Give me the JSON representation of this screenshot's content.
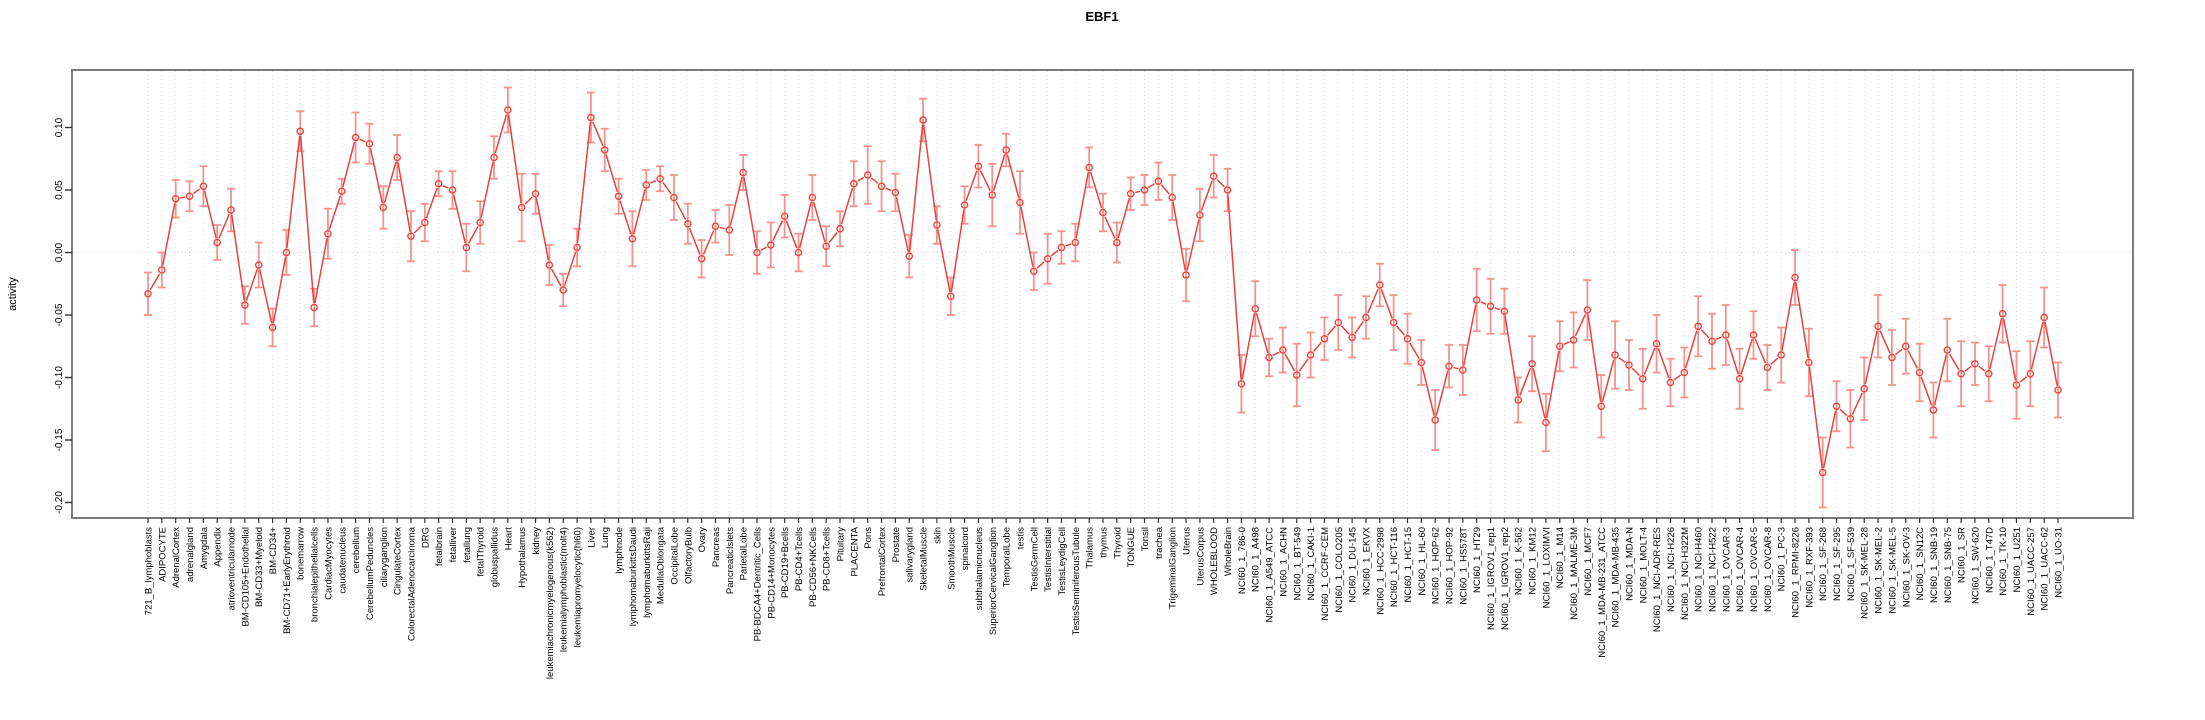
{
  "chart_title": "EBF1",
  "chart_data": {
    "type": "line",
    "title": "EBF1",
    "ylabel": "activity",
    "xlabel": "",
    "ylim": [
      -0.21,
      0.145
    ],
    "yticks": [
      "0.10",
      "0.05",
      "0.00",
      "-0.05",
      "-0.10",
      "-0.15",
      "-0.20"
    ],
    "ytick_values": [
      0.1,
      0.05,
      0.0,
      -0.05,
      -0.1,
      -0.15,
      -0.2
    ],
    "grid": "vertical dotted gridline per category, dotted horizontal line at zero",
    "legend_position": "none",
    "marker": "open-circle",
    "point_color": "#e8413e",
    "errorbar_color": "#f4928f",
    "grid_color": "#dedede",
    "box_color": "#7c7c7c",
    "categories": [
      "721_B_lymphoblasts",
      "ADIPOCYTE",
      "AdrenalCortex",
      "adrenalgland",
      "Amygdala",
      "Appendix",
      "atrioventricularnode",
      "BM-CD105+Endothelial",
      "BM-CD33+Myeloid",
      "BM-CD34+",
      "BM-CD71+EarlyErythroid",
      "bonemarrow",
      "bronchialepithelialcells",
      "CardiacMyocytes",
      "caudatenucleus",
      "cerebellum",
      "CerebellumPeduncles",
      "ciliaryganglion",
      "CingulateCortex",
      "ColorectalAdenocarcinoma",
      "DRG",
      "fetalbrain",
      "fetalliver",
      "fetallung",
      "fetalThyroid",
      "globuspallidus",
      "Heart",
      "Hypothalamus",
      "kidney",
      "leukemiachronicmyelogenous(k562)",
      "leukemialymphoblastic(molt4)",
      "leukemiapromyelocytic(hl60)",
      "Liver",
      "Lung",
      "lymphnode",
      "lymphomaburkittsDaudi",
      "lymphomaburkittsRaji",
      "MedullaOblongata",
      "OccipitalLobe",
      "OlfactoryBulb",
      "Ovary",
      "Pancreas",
      "PancreaticIslets",
      "ParietalLobe",
      "PB-BDCA4+Dentritic_Cells",
      "PB-CD14+Monocytes",
      "PB-CD19+Bcells",
      "PB-CD4+Tcells",
      "PB-CD56+NKCells",
      "PB-CD8+Tcells",
      "Pituitary",
      "PLACENTA",
      "Pons",
      "PrefrontalCortex",
      "Prostate",
      "salivarygland",
      "SkeletalMuscle",
      "skin",
      "SmoothMuscle",
      "spinalcord",
      "subthalamicnucleus",
      "SuperiorCervicalGanglion",
      "TemporalLobe",
      "testis",
      "TestisGermCell",
      "TestisInterstitial",
      "TestisLeydigCell",
      "TestisSeminiferousTubule",
      "Thalamus",
      "thymus",
      "Thyroid",
      "TONGUE",
      "Tonsil",
      "trachea",
      "TrigeminalGanglion",
      "Uterus",
      "UterusCorpus",
      "WHOLEBLOOD",
      "WholeBrain",
      "NCI60_1_786-0",
      "NCI60_1_A498",
      "NCI60_1_A549_ATCC",
      "NCI60_1_ACHN",
      "NCI60_1_BT-549",
      "NCI60_1_CAKI-1",
      "NCI60_1_CCRF-CEM",
      "NCI60_1_COLO205",
      "NCI60_1_DU-145",
      "NCI60_1_EKVX",
      "NCI60_1_HCC-2998",
      "NCI60_1_HCT-116",
      "NCI60_1_HCT-15",
      "NCI60_1_HL-60",
      "NCI60_1_HOP-62",
      "NCI60_1_HOP-92",
      "NCI60_1_HS578T",
      "NCI60_1_HT29",
      "NCI60_1_IGROV1_rep1",
      "NCI60_1_IGROV1_rep2",
      "NCI60_1_K-562",
      "NCI60_1_KM12",
      "NCI60_1_LOXIMVI",
      "NCI60_1_M14",
      "NCI60_1_MALME-3M",
      "NCI60_1_MCF7",
      "NCI60_1_MDA-MB-231_ATCC",
      "NCI60_1_MDA-MB-435",
      "NCI60_1_MDA-N",
      "NCI60_1_MOLT-4",
      "NCI60_1_NCI-ADR-RES",
      "NCI60_1_NCI-H226",
      "NCI60_1_NCI-H322M",
      "NCI60_1_NCI-H460",
      "NCI60_1_NCI-H522",
      "NCI60_1_OVCAR-3",
      "NCI60_1_OVCAR-4",
      "NCI60_1_OVCAR-5",
      "NCI60_1_OVCAR-8",
      "NCI60_1_PC-3",
      "NCI60_1_RPMI-8226",
      "NCI60_1_RXF-393",
      "NCI60_1_SF-268",
      "NCI60_1_SF-295",
      "NCI60_1_SF-539",
      "NCI60_1_SK-MEL-28",
      "NCI60_1_SK-MEL-2",
      "NCI60_1_SK-MEL-5",
      "NCI60_1_SK-OV-3",
      "NCI60_1_SN12C",
      "NCI60_1_SNB-19",
      "NCI60_1_SNB-75",
      "NCI60_1_SR",
      "NCI60_1_SW-620",
      "NCI60_1_T47D",
      "NCI60_1_TK-10",
      "NCI60_1_U251",
      "NCI60_1_UACC-257",
      "NCI60_1_UACC-62",
      "NCI60_1_UO-31"
    ],
    "values": [
      -0.033,
      -0.014,
      0.043,
      0.045,
      0.053,
      0.008,
      0.034,
      -0.042,
      -0.01,
      -0.06,
      0.0,
      0.097,
      -0.044,
      0.015,
      0.049,
      0.092,
      0.087,
      0.036,
      0.076,
      0.013,
      0.024,
      0.055,
      0.05,
      0.004,
      0.024,
      0.076,
      0.114,
      0.036,
      0.047,
      -0.01,
      -0.03,
      0.004,
      0.108,
      0.082,
      0.045,
      0.011,
      0.054,
      0.059,
      0.044,
      0.023,
      -0.005,
      0.021,
      0.018,
      0.064,
      0.0,
      0.006,
      0.029,
      0.0,
      0.044,
      0.005,
      0.019,
      0.055,
      0.062,
      0.053,
      0.048,
      -0.003,
      0.106,
      0.022,
      -0.035,
      0.038,
      0.069,
      0.046,
      0.082,
      0.04,
      -0.015,
      -0.005,
      0.004,
      0.008,
      0.068,
      0.032,
      0.008,
      0.047,
      0.05,
      0.057,
      0.044,
      -0.018,
      0.03,
      0.061,
      0.05,
      -0.105,
      -0.045,
      -0.084,
      -0.078,
      -0.098,
      -0.082,
      -0.069,
      -0.056,
      -0.068,
      -0.052,
      -0.026,
      -0.056,
      -0.069,
      -0.088,
      -0.134,
      -0.091,
      -0.094,
      -0.038,
      -0.043,
      -0.047,
      -0.118,
      -0.089,
      -0.136,
      -0.075,
      -0.07,
      -0.046,
      -0.123,
      -0.082,
      -0.09,
      -0.101,
      -0.073,
      -0.104,
      -0.096,
      -0.059,
      -0.071,
      -0.066,
      -0.101,
      -0.066,
      -0.092,
      -0.082,
      -0.02,
      -0.088,
      -0.176,
      -0.123,
      -0.133,
      -0.109,
      -0.059,
      -0.084,
      -0.075,
      -0.096,
      -0.126,
      -0.078,
      -0.097,
      -0.089,
      -0.097,
      -0.049,
      -0.106,
      -0.097,
      -0.052,
      -0.11
    ],
    "errors": [
      0.017,
      0.014,
      0.015,
      0.012,
      0.016,
      0.014,
      0.017,
      0.015,
      0.018,
      0.015,
      0.018,
      0.016,
      0.015,
      0.02,
      0.01,
      0.02,
      0.016,
      0.017,
      0.018,
      0.02,
      0.015,
      0.01,
      0.015,
      0.019,
      0.017,
      0.017,
      0.018,
      0.027,
      0.016,
      0.016,
      0.013,
      0.015,
      0.02,
      0.017,
      0.014,
      0.022,
      0.012,
      0.01,
      0.018,
      0.016,
      0.015,
      0.013,
      0.02,
      0.014,
      0.017,
      0.018,
      0.017,
      0.015,
      0.018,
      0.016,
      0.014,
      0.018,
      0.023,
      0.02,
      0.015,
      0.017,
      0.017,
      0.015,
      0.015,
      0.015,
      0.017,
      0.025,
      0.013,
      0.025,
      0.015,
      0.02,
      0.013,
      0.015,
      0.016,
      0.015,
      0.016,
      0.013,
      0.012,
      0.015,
      0.018,
      0.021,
      0.021,
      0.017,
      0.017,
      0.023,
      0.022,
      0.015,
      0.018,
      0.025,
      0.018,
      0.017,
      0.022,
      0.016,
      0.017,
      0.017,
      0.022,
      0.02,
      0.018,
      0.024,
      0.017,
      0.02,
      0.025,
      0.022,
      0.018,
      0.018,
      0.022,
      0.023,
      0.02,
      0.022,
      0.024,
      0.025,
      0.027,
      0.02,
      0.024,
      0.023,
      0.019,
      0.02,
      0.024,
      0.022,
      0.024,
      0.024,
      0.019,
      0.018,
      0.022,
      0.022,
      0.027,
      0.028,
      0.02,
      0.023,
      0.025,
      0.025,
      0.022,
      0.022,
      0.023,
      0.022,
      0.025,
      0.026,
      0.017,
      0.022,
      0.023,
      0.027,
      0.026,
      0.024,
      0.022
    ]
  }
}
